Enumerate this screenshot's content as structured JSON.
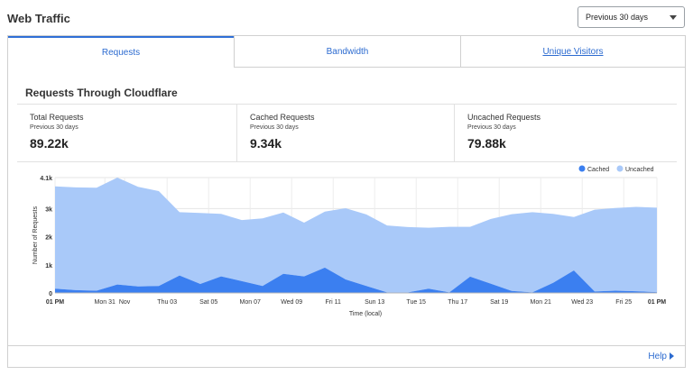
{
  "header": {
    "title": "Web Traffic"
  },
  "period_select": {
    "value": "Previous 30 days",
    "icon": "chevron-down-icon"
  },
  "tabs": [
    {
      "label": "Requests",
      "active": true
    },
    {
      "label": "Bandwidth",
      "active": false
    },
    {
      "label": "Unique Visitors",
      "active": false
    }
  ],
  "section": {
    "title": "Requests Through Cloudflare"
  },
  "stats": [
    {
      "label": "Total Requests",
      "sub": "Previous 30 days",
      "value": "89.22k"
    },
    {
      "label": "Cached Requests",
      "sub": "Previous 30 days",
      "value": "9.34k"
    },
    {
      "label": "Uncached Requests",
      "sub": "Previous 30 days",
      "value": "79.88k"
    }
  ],
  "footer": {
    "help_label": "Help"
  },
  "colors": {
    "cached": "#3b7ff0",
    "uncached": "#a9c9f9",
    "link": "#2c6bd0"
  },
  "chart_data": {
    "type": "area",
    "stacked": true,
    "ylabel": "Number of Requests",
    "xlabel": "Time (local)",
    "ylim": [
      0,
      4100
    ],
    "yticks": [
      "0",
      "1k",
      "2k",
      "3k",
      "4.1k"
    ],
    "ytick_values": [
      0,
      1000,
      2000,
      3000,
      4100
    ],
    "xticks": [
      "01 PM",
      "Mon 31",
      "Nov",
      "Thu 03",
      "Sat 05",
      "Mon 07",
      "Wed 09",
      "Fri 11",
      "Sun 13",
      "Tue 15",
      "Thu 17",
      "Sat 19",
      "Mon 21",
      "Wed 23",
      "Fri 25",
      "01 PM"
    ],
    "xtick_bold": [
      true,
      false,
      false,
      false,
      false,
      false,
      false,
      false,
      false,
      false,
      false,
      false,
      false,
      false,
      false,
      true
    ],
    "xtick_positions": [
      0,
      2.4,
      3.35,
      5.4,
      7.4,
      9.4,
      11.4,
      13.4,
      15.4,
      17.4,
      19.4,
      21.4,
      23.4,
      25.4,
      27.4,
      29.0
    ],
    "legend": [
      "Cached",
      "Uncached"
    ],
    "legend_position": "top-right",
    "grid": true,
    "x": [
      0,
      1,
      2,
      3,
      4,
      5,
      6,
      7,
      8,
      9,
      10,
      11,
      12,
      13,
      14,
      15,
      16,
      17,
      18,
      19,
      20,
      21,
      22,
      23,
      24,
      25,
      26,
      27,
      28,
      29
    ],
    "series": [
      {
        "name": "Cached",
        "values": [
          150,
          100,
          80,
          300,
          230,
          250,
          620,
          320,
          590,
          420,
          250,
          680,
          590,
          900,
          480,
          250,
          20,
          20,
          150,
          20,
          580,
          330,
          70,
          20,
          360,
          800,
          50,
          80,
          60,
          30
        ]
      },
      {
        "name": "Uncached",
        "values": [
          3640,
          3650,
          3660,
          3800,
          3540,
          3370,
          2250,
          2520,
          2220,
          2170,
          2400,
          2180,
          1910,
          1990,
          2530,
          2540,
          2380,
          2320,
          2170,
          2330,
          1770,
          2300,
          2730,
          2850,
          2450,
          1900,
          2910,
          2940,
          3000,
          3000
        ]
      }
    ]
  }
}
